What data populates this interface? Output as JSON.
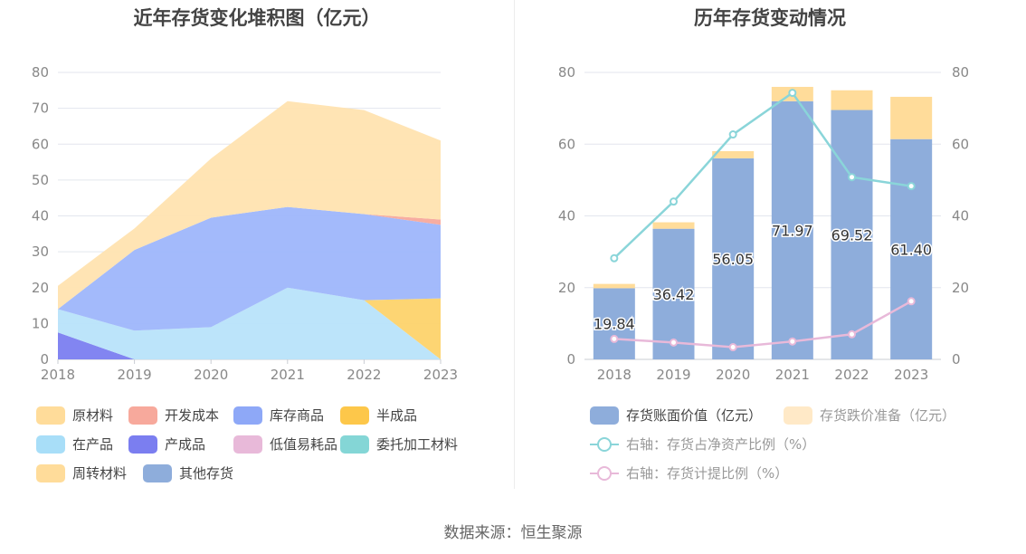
{
  "left_title": "近年存货变化堆积图（亿元）",
  "right_title": "历年存货变动情况",
  "source": "数据来源：恒生聚源",
  "chart_data": [
    {
      "type": "area",
      "title": "近年存货变化堆积图（亿元）",
      "stacked": true,
      "categories": [
        "2018",
        "2019",
        "2020",
        "2021",
        "2022",
        "2023"
      ],
      "ylim": [
        0,
        80
      ],
      "yticks": [
        0,
        10,
        20,
        30,
        40,
        50,
        60,
        70,
        80
      ],
      "grid": true,
      "series": [
        {
          "name": "产成品",
          "color": "#7b7ef0",
          "values": [
            7.5,
            0,
            0,
            0,
            0,
            0
          ]
        },
        {
          "name": "在产品",
          "color": "#b8e3fa",
          "values": [
            6.5,
            8,
            9,
            20,
            16.5,
            0
          ]
        },
        {
          "name": "半成品",
          "color": "#fdd36c",
          "values": [
            0,
            0,
            0,
            0,
            0,
            17
          ]
        },
        {
          "name": "库存商品",
          "color": "#9eb6fb",
          "values": [
            0,
            22.5,
            30.5,
            22.5,
            24,
            20.5
          ]
        },
        {
          "name": "开发成本",
          "color": "#f7a99c",
          "values": [
            0,
            0,
            0,
            0,
            0,
            1.5
          ]
        },
        {
          "name": "原材料",
          "color": "#ffe3b0",
          "values": [
            6.5,
            6,
            16.5,
            29.5,
            29,
            22
          ]
        }
      ]
    },
    {
      "type": "bar",
      "title": "历年存货变动情况",
      "categories": [
        "2018",
        "2019",
        "2020",
        "2021",
        "2022",
        "2023"
      ],
      "ylim": [
        0,
        80
      ],
      "yticks": [
        0,
        20,
        40,
        60,
        80
      ],
      "y2lim": [
        0,
        80
      ],
      "y2ticks": [
        0,
        20,
        40,
        60,
        80
      ],
      "grid": true,
      "series": [
        {
          "name": "存货账面价值（亿元）",
          "type": "bar",
          "stack": "inv",
          "color": "#8eaddb",
          "values": [
            19.84,
            36.42,
            56.05,
            71.97,
            69.52,
            61.4
          ],
          "labels": [
            "19.84",
            "36.42",
            "56.05",
            "71.97",
            "69.52",
            "61.40"
          ]
        },
        {
          "name": "存货跌价准备（亿元）",
          "type": "bar",
          "stack": "inv",
          "color": "#ffdc9a",
          "values": [
            1.2,
            1.8,
            2.0,
            4.0,
            5.5,
            11.8
          ]
        },
        {
          "name": "右轴：存货占净资产比例（%）",
          "type": "line",
          "axis": "right",
          "color": "#8ad5d9",
          "values": [
            28.2,
            44.0,
            62.7,
            74.3,
            50.8,
            48.3
          ]
        },
        {
          "name": "右轴：存货计提比例（%）",
          "type": "line",
          "axis": "right",
          "color": "#e8b9d9",
          "values": [
            5.7,
            4.7,
            3.4,
            5.0,
            7.0,
            16.2
          ]
        }
      ]
    }
  ],
  "left_legend": [
    {
      "label": "原材料",
      "color": "#ffdc9a"
    },
    {
      "label": "开发成本",
      "color": "#f7a99c"
    },
    {
      "label": "库存商品",
      "color": "#8ea8f7"
    },
    {
      "label": "半成品",
      "color": "#fdc74a"
    },
    {
      "label": "在产品",
      "color": "#a8def8"
    },
    {
      "label": "产成品",
      "color": "#7b7ef0"
    },
    {
      "label": "低值易耗品",
      "color": "#e8b9d9"
    },
    {
      "label": "委托加工材料",
      "color": "#84d6d6"
    },
    {
      "label": "周转材料",
      "color": "#ffdc9a"
    },
    {
      "label": "其他存货",
      "color": "#8eaddb"
    }
  ],
  "right_legend": [
    {
      "label": "存货账面价值（亿元）",
      "color": "#8eaddb",
      "kind": "box"
    },
    {
      "label": "存货跌价准备（亿元）",
      "color": "#ffe9c7",
      "kind": "box",
      "muted": true
    },
    {
      "label": "右轴：存货占净资产比例（%）",
      "color": "#8ad5d9",
      "kind": "line",
      "muted": true
    },
    {
      "label": "右轴：存货计提比例（%）",
      "color": "#e8b9d9",
      "kind": "line",
      "muted": true
    }
  ]
}
